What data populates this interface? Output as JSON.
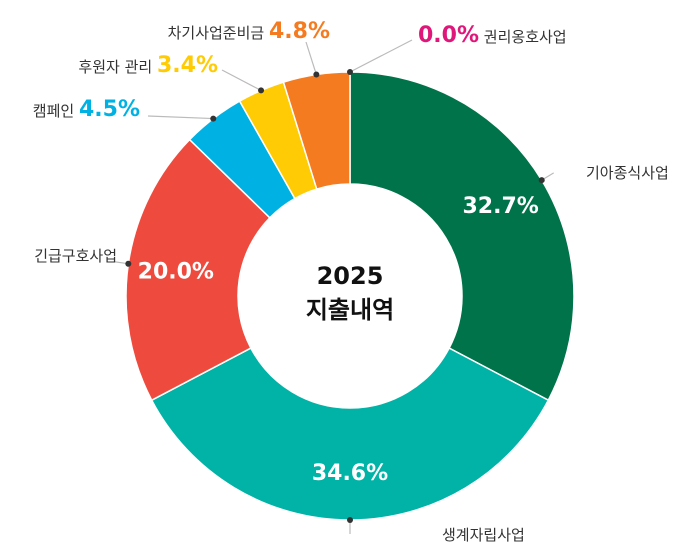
{
  "chart_data": {
    "type": "pie",
    "center_label": {
      "line1": "2025",
      "line2": "지출내역"
    },
    "slices": [
      {
        "label": "권리옹호사업",
        "value": 0.0,
        "display": "0.0%",
        "color": "#E0177A"
      },
      {
        "label": "기아종식사업",
        "value": 32.7,
        "display": "32.7%",
        "color": "#00734A"
      },
      {
        "label": "생계자립사업",
        "value": 34.6,
        "display": "34.6%",
        "color": "#00B3A6"
      },
      {
        "label": "긴급구호사업",
        "value": 20.0,
        "display": "20.0%",
        "color": "#EE4B3E"
      },
      {
        "label": "캠페인",
        "value": 4.5,
        "display": "4.5%",
        "color": "#00B2E3"
      },
      {
        "label": "후원자 관리",
        "value": 3.4,
        "display": "3.4%",
        "color": "#FFCB05"
      },
      {
        "label": "차기사업준비금",
        "value": 4.8,
        "display": "4.8%",
        "color": "#F47B20"
      }
    ]
  }
}
